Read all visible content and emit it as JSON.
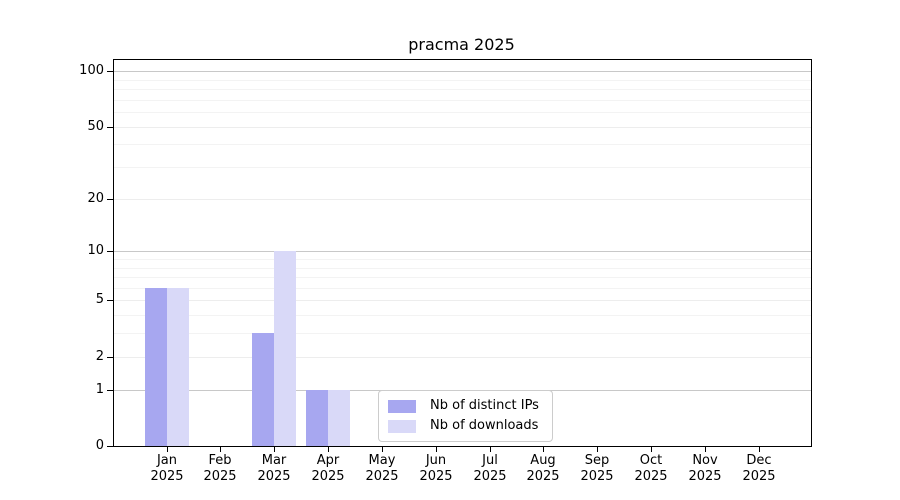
{
  "figure": {
    "title": "pracma 2025"
  },
  "chart_data": {
    "type": "bar",
    "title": "pracma 2025",
    "categories": [
      "Jan",
      "Feb",
      "Mar",
      "Apr",
      "May",
      "Jun",
      "Jul",
      "Aug",
      "Sep",
      "Oct",
      "Nov",
      "Dec"
    ],
    "year_label": "2025",
    "series": [
      {
        "name": "Nb of distinct IPs",
        "color": "#a7a7f0",
        "values": [
          6,
          0,
          3,
          1,
          0,
          0,
          0,
          0,
          0,
          0,
          0,
          0
        ]
      },
      {
        "name": "Nb of downloads",
        "color": "#d9d9f8",
        "values": [
          6,
          0,
          10,
          1,
          0,
          0,
          0,
          0,
          0,
          0,
          0,
          0
        ]
      }
    ],
    "y_axis": {
      "scale": "log10(1+x)",
      "tick_values": [
        0,
        1,
        2,
        5,
        10,
        20,
        50,
        100
      ],
      "decade_gridlines": [
        1,
        10,
        100
      ],
      "major_gridlines": [
        2,
        5,
        20,
        50
      ],
      "minor_gridlines": [
        3,
        4,
        6,
        7,
        8,
        9,
        30,
        40,
        60,
        70,
        80,
        90
      ],
      "range": [
        0,
        115
      ]
    },
    "xlabel": "",
    "ylabel": "",
    "grid": true,
    "legend_position": "bottom-center"
  },
  "colors": {
    "distinct_ips": "#a7a7f0",
    "downloads": "#d9d9f8",
    "grid_minor": "#f3f3f3",
    "grid_major": "#ededed",
    "grid_decade": "#c8c8c8",
    "spine": "#000000",
    "background": "#ffffff",
    "legend_border": "#cccccc"
  }
}
